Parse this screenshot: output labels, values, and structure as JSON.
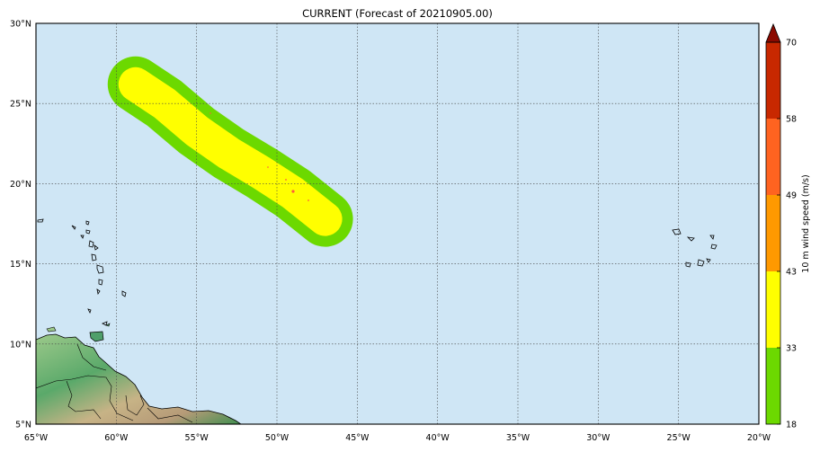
{
  "title": "CURRENT (Forecast of 20210905.00)",
  "map": {
    "lon_range": [
      -65,
      -20
    ],
    "lat_range": [
      5,
      30
    ],
    "lon_ticks": [
      {
        "value": -65,
        "label": "65°W"
      },
      {
        "value": -60,
        "label": "60°W"
      },
      {
        "value": -55,
        "label": "55°W"
      },
      {
        "value": -50,
        "label": "50°W"
      },
      {
        "value": -45,
        "label": "45°W"
      },
      {
        "value": -40,
        "label": "40°W"
      },
      {
        "value": -35,
        "label": "35°W"
      },
      {
        "value": -30,
        "label": "30°W"
      },
      {
        "value": -25,
        "label": "25°W"
      },
      {
        "value": -20,
        "label": "20°W"
      }
    ],
    "lat_ticks": [
      {
        "value": 30,
        "label": "30°N"
      },
      {
        "value": 25,
        "label": "25°N"
      },
      {
        "value": 20,
        "label": "20°N"
      },
      {
        "value": 15,
        "label": "15°N"
      },
      {
        "value": 10,
        "label": "10°N"
      },
      {
        "value": 5,
        "label": "5°N"
      }
    ],
    "grid": true,
    "ocean_color": "#cfe6f5",
    "wind_swath": {
      "track": [
        [
          -58.8,
          26.2
        ],
        [
          -57.0,
          25.0
        ],
        [
          -55.0,
          23.3
        ],
        [
          -53.0,
          21.9
        ],
        [
          -51.0,
          20.7
        ],
        [
          -49.0,
          19.4
        ],
        [
          -47.0,
          17.8
        ]
      ],
      "bands": [
        {
          "min": 18,
          "color": "#6cd900"
        },
        {
          "min": 33,
          "color": "#ffff00"
        }
      ]
    }
  },
  "colorbar": {
    "label": "10 m wind speed (m/s)",
    "extend": "max",
    "levels": [
      {
        "from": 18,
        "to": 33,
        "color": "#6cd900"
      },
      {
        "from": 33,
        "to": 43,
        "color": "#ffff00"
      },
      {
        "from": 43,
        "to": 49,
        "color": "#ff9900"
      },
      {
        "from": 49,
        "to": 58,
        "color": "#ff6320"
      },
      {
        "from": 58,
        "to": 70,
        "color": "#c82800"
      }
    ],
    "extend_color": "#8b0a00",
    "tick_labels": [
      "18",
      "33",
      "43",
      "49",
      "58",
      "70"
    ]
  }
}
